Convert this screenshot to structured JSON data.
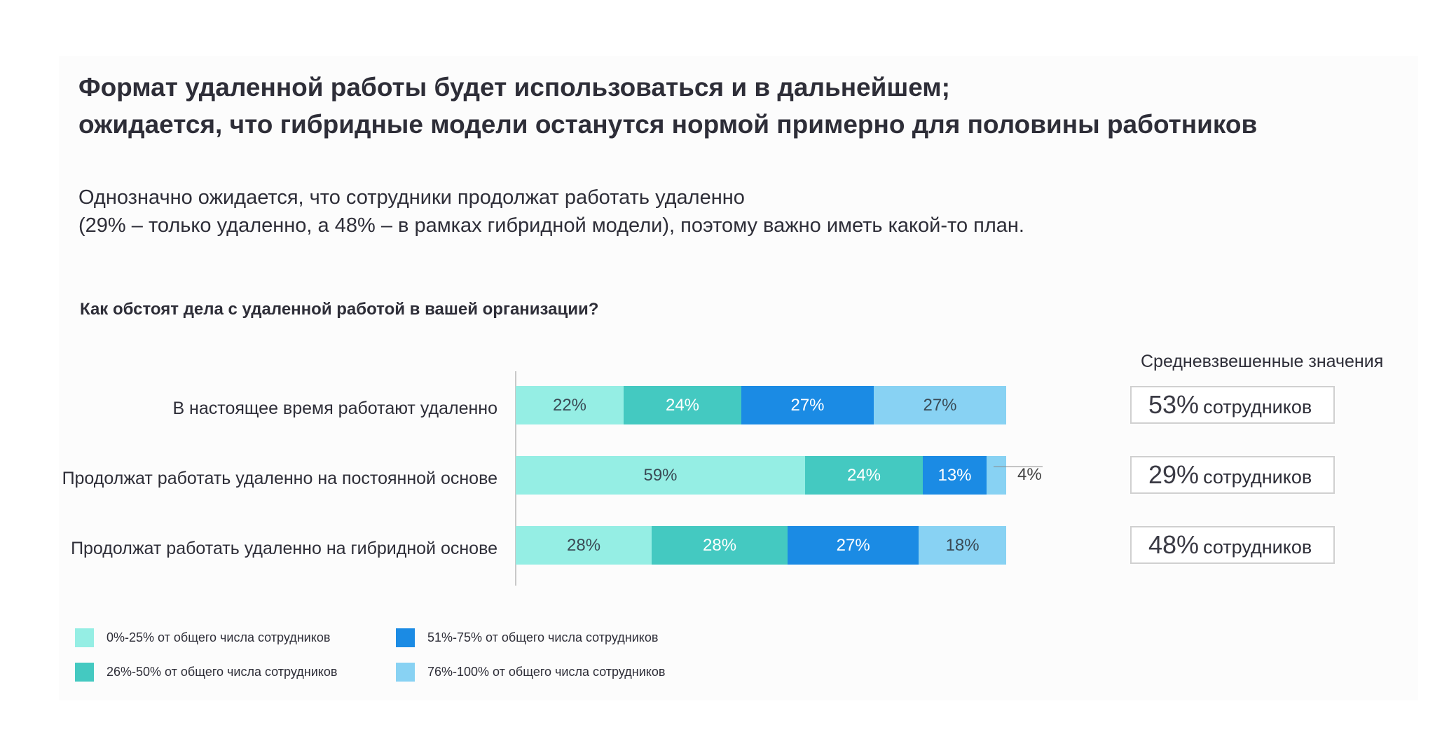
{
  "title": [
    "Формат удаленной работы будет использоваться и в дальнейшем;",
    "ожидается, что гибридные модели останутся нормой примерно для половины работников"
  ],
  "subtitle": [
    "Однозначно ожидается, что сотрудники продолжат работать удаленно",
    "(29% – только удаленно, а 48% – в рамках гибридной модели), поэтому важно иметь какой-то план."
  ],
  "question": "Как обстоят дела с удаленной работой в вашей организации?",
  "averages": {
    "header": "Средневзвешенные значения",
    "unit": "сотрудников",
    "values": [
      "53%",
      "29%",
      "48%"
    ]
  },
  "chart_data": {
    "type": "bar",
    "orientation": "horizontal-stacked",
    "title": "Как обстоят дела с удаленной работой в вашей организации?",
    "categories": [
      "В настоящее время работают удаленно",
      "Продолжат работать удаленно на постоянной основе",
      "Продолжат работать удаленно на гибридной основе"
    ],
    "series": [
      {
        "name": "0%-25% от общего числа сотрудников",
        "color": "#95EEE4",
        "text_color": "#3a4a55",
        "values": [
          22,
          59,
          28
        ]
      },
      {
        "name": "26%-50% от общего числа сотрудников",
        "color": "#44C9C1",
        "text_color": "#ffffff",
        "values": [
          24,
          24,
          28
        ]
      },
      {
        "name": "51%-75% от общего числа сотрудников",
        "color": "#1B8BE4",
        "text_color": "#ffffff",
        "values": [
          27,
          13,
          27
        ]
      },
      {
        "name": "76%-100% от общего числа сотрудников",
        "color": "#88D2F3",
        "text_color": "#3a4a55",
        "values": [
          27,
          4,
          18
        ]
      }
    ],
    "xlim": [
      0,
      100
    ],
    "legend_position": "bottom-left"
  }
}
